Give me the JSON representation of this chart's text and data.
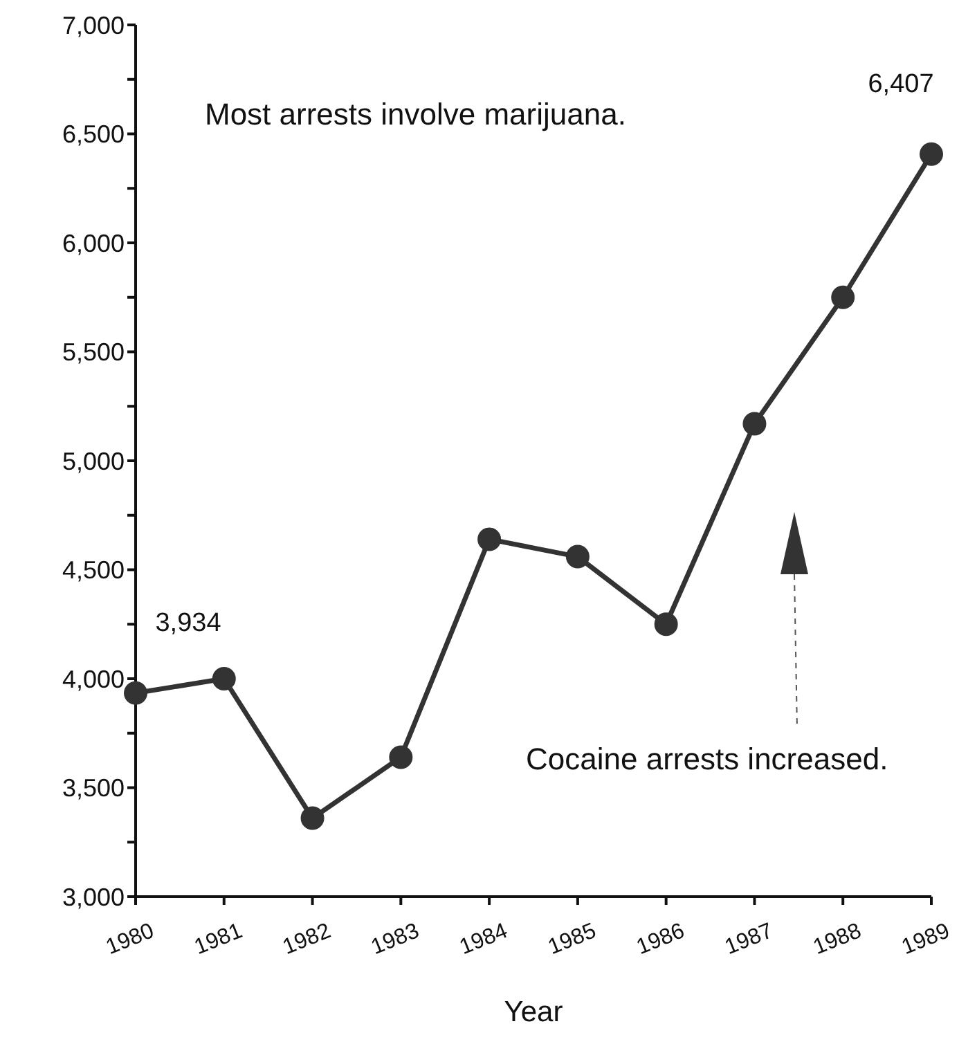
{
  "chart_data": {
    "type": "line",
    "xlabel": "Year",
    "categories": [
      "1980",
      "1981",
      "1982",
      "1983",
      "1984",
      "1985",
      "1986",
      "1987",
      "1988",
      "1989"
    ],
    "series": [
      {
        "color": "#333333",
        "values": [
          3934,
          4000,
          3360,
          3640,
          4640,
          4560,
          4250,
          5170,
          5750,
          6407
        ],
        "value_labels": [
          "3,934",
          null,
          null,
          null,
          null,
          null,
          null,
          null,
          null,
          "6,407"
        ]
      }
    ],
    "ylim": [
      3000,
      7000
    ],
    "yticks": [
      {
        "value": 3000,
        "label": "3,000"
      },
      {
        "value": 3250,
        "label": null
      },
      {
        "value": 3500,
        "label": "3,500"
      },
      {
        "value": 3750,
        "label": null
      },
      {
        "value": 4000,
        "label": "4,000"
      },
      {
        "value": 4250,
        "label": null
      },
      {
        "value": 4500,
        "label": "4,500"
      },
      {
        "value": 4750,
        "label": null
      },
      {
        "value": 5000,
        "label": "5,000"
      },
      {
        "value": 5250,
        "label": null
      },
      {
        "value": 5500,
        "label": "5,500"
      },
      {
        "value": 5750,
        "label": null
      },
      {
        "value": 6000,
        "label": "6,000"
      },
      {
        "value": 6250,
        "label": null
      },
      {
        "value": 6500,
        "label": "6,500"
      },
      {
        "value": 6750,
        "label": null
      },
      {
        "value": 7000,
        "label": "7,000"
      }
    ],
    "annotations": [
      "Most arrests involve marijuana.",
      "Cocaine arrests increased."
    ],
    "grid": false,
    "legend": false,
    "marker": "circle",
    "line_style": "solid"
  }
}
